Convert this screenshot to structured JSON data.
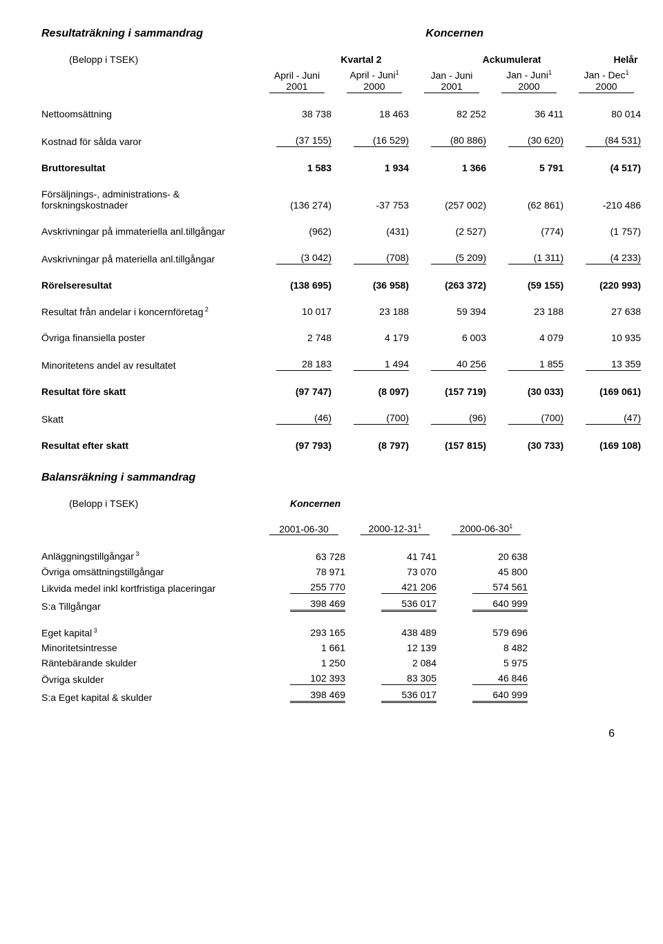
{
  "pl": {
    "title_left": "Resultaträkning i sammandrag",
    "title_right": "Koncernen",
    "belopp": "(Belopp i TSEK)",
    "group_kvartal": "Kvartal 2",
    "group_ack": "Ackumulerat",
    "group_helar": "Helår",
    "col1_a": "April - Juni",
    "col1_b": "2001",
    "col2_a": "April - Juni",
    "col2_sup": "1",
    "col2_b": "2000",
    "col3_a": "Jan - Juni",
    "col3_b": "2001",
    "col4_a": "Jan - Juni",
    "col4_sup": "1",
    "col4_b": "2000",
    "col5_a": "Jan - Dec",
    "col5_sup": "1",
    "col5_b": "2000",
    "rows": [
      {
        "label": "Nettoomsättning",
        "v": [
          "38 738",
          "18 463",
          "82 252",
          "36 411",
          "80 014"
        ],
        "gapAfter": true
      },
      {
        "label": "Kostnad för sålda varor",
        "v": [
          "(37 155)",
          "(16 529)",
          "(80 886)",
          "(30 620)",
          "(84 531)"
        ],
        "underline": "single",
        "gapAfter": true
      },
      {
        "label": "Bruttoresultat",
        "bold": true,
        "v": [
          "1 583",
          "1 934",
          "1 366",
          "5 791",
          "(4 517)"
        ],
        "gapAfter": true
      },
      {
        "label": "Försäljnings-, administrations- & forskningskostnader",
        "v": [
          "(136 274)",
          "-37 753",
          "(257 002)",
          "(62 861)",
          "-210 486"
        ],
        "gapAfter": true
      },
      {
        "label": "Avskrivningar på immateriella anl.tillgångar",
        "v": [
          "(962)",
          "(431)",
          "(2 527)",
          "(774)",
          "(1 757)"
        ],
        "gapAfter": true
      },
      {
        "label": "Avskrivningar på materiella anl.tillgångar",
        "v": [
          "(3 042)",
          "(708)",
          "(5 209)",
          "(1 311)",
          "(4 233)"
        ],
        "underline": "single",
        "gapAfter": true
      },
      {
        "label": "Rörelseresultat",
        "bold": true,
        "v": [
          "(138 695)",
          "(36 958)",
          "(263 372)",
          "(59 155)",
          "(220 993)"
        ],
        "gapAfter": true
      },
      {
        "label": "Resultat från andelar i koncernföretag",
        "sup": "2",
        "v": [
          "10 017",
          "23 188",
          "59 394",
          "23 188",
          "27 638"
        ],
        "gapAfter": true
      },
      {
        "label": "Övriga finansiella poster",
        "v": [
          "2 748",
          "4 179",
          "6 003",
          "4 079",
          "10 935"
        ],
        "gapAfter": true
      },
      {
        "label": "Minoritetens andel av resultatet",
        "v": [
          "28 183",
          "1 494",
          "40 256",
          "1 855",
          "13 359"
        ],
        "underline": "single",
        "gapAfter": true
      },
      {
        "label": "Resultat före skatt",
        "bold": true,
        "v": [
          "(97 747)",
          "(8 097)",
          "(157 719)",
          "(30 033)",
          "(169 061)"
        ],
        "gapAfter": true
      },
      {
        "label": "Skatt",
        "v": [
          "(46)",
          "(700)",
          "(96)",
          "(700)",
          "(47)"
        ],
        "underline": "single",
        "gapAfter": true
      },
      {
        "label": "Resultat efter skatt",
        "bold": true,
        "v": [
          "(97 793)",
          "(8 797)",
          "(157 815)",
          "(30 733)",
          "(169 108)"
        ]
      }
    ]
  },
  "bs": {
    "title": "Balansräkning i sammandrag",
    "belopp": "(Belopp i TSEK)",
    "koncernen": "Koncernen",
    "dates": [
      {
        "t": "2001-06-30"
      },
      {
        "t": "2000-12-31",
        "sup": "1"
      },
      {
        "t": "2000-06-30",
        "sup": "1"
      }
    ],
    "rows": [
      {
        "label": "Anläggningstillgångar",
        "sup": "3",
        "v": [
          "63 728",
          "41 741",
          "20 638"
        ]
      },
      {
        "label": "Övriga omsättningstillgångar",
        "v": [
          "78 971",
          "73 070",
          "45 800"
        ]
      },
      {
        "label": "Likvida medel inkl kortfristiga placeringar",
        "v": [
          "255 770",
          "421 206",
          "574 561"
        ],
        "underline": "single"
      },
      {
        "label": "S:a Tillgångar",
        "v": [
          "398 469",
          "536 017",
          "640 999"
        ],
        "underline": "double",
        "gapAfter": true
      },
      {
        "label": "Eget kapital",
        "sup": "3",
        "v": [
          "293 165",
          "438 489",
          "579 696"
        ]
      },
      {
        "label": "Minoritetsintresse",
        "v": [
          "1 661",
          "12 139",
          "8 482"
        ]
      },
      {
        "label": "Räntebärande skulder",
        "v": [
          "1 250",
          "2 084",
          "5 975"
        ]
      },
      {
        "label": "Övriga skulder",
        "v": [
          "102 393",
          "83 305",
          "46 846"
        ],
        "underline": "single"
      },
      {
        "label": "S:a Eget kapital & skulder",
        "v": [
          "398 469",
          "536 017",
          "640 999"
        ],
        "underline": "double"
      }
    ]
  },
  "page": "6"
}
